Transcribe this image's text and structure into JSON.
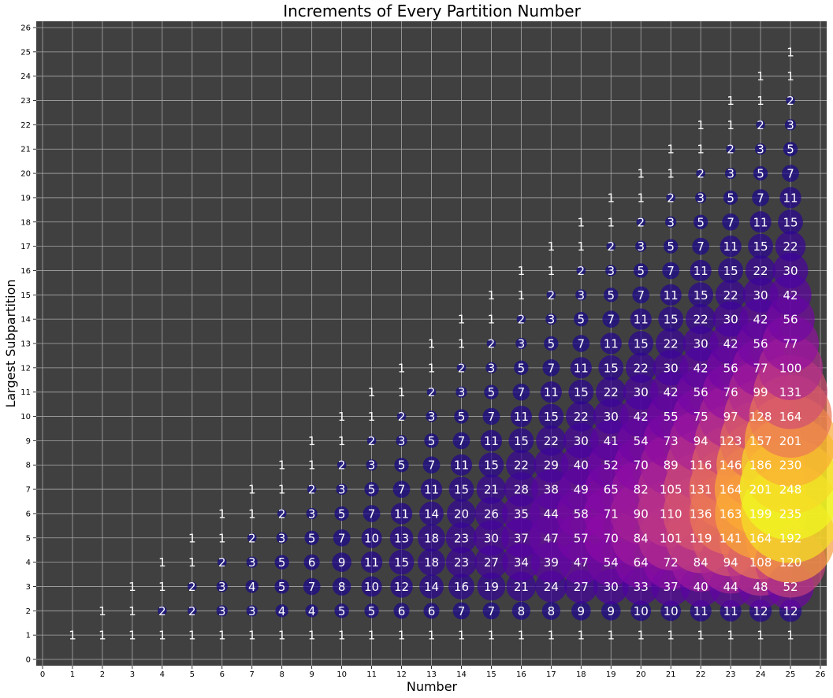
{
  "chart_data": {
    "type": "scatter",
    "title": "Increments of Every Partition Number",
    "xlabel": "Number",
    "ylabel": "Largest Subpartition",
    "xlim": [
      0,
      26
    ],
    "ylim": [
      0,
      26
    ],
    "xticks": [
      0,
      1,
      2,
      3,
      4,
      5,
      6,
      7,
      8,
      9,
      10,
      11,
      12,
      13,
      14,
      15,
      16,
      17,
      18,
      19,
      20,
      21,
      22,
      23,
      24,
      25,
      26
    ],
    "yticks": [
      0,
      1,
      2,
      3,
      4,
      5,
      6,
      7,
      8,
      9,
      10,
      11,
      12,
      13,
      14,
      15,
      16,
      17,
      18,
      19,
      20,
      21,
      22,
      23,
      24,
      25,
      26
    ],
    "grid": true,
    "background_color": "#404040",
    "grid_color": "#a8a8a8",
    "colormap": "plasma",
    "bubble_size_encodes": "value",
    "points": [
      [
        1,
        1,
        1
      ],
      [
        2,
        1,
        1
      ],
      [
        2,
        2,
        1
      ],
      [
        3,
        1,
        1
      ],
      [
        3,
        2,
        1
      ],
      [
        3,
        3,
        1
      ],
      [
        4,
        1,
        1
      ],
      [
        4,
        2,
        2
      ],
      [
        4,
        3,
        1
      ],
      [
        4,
        4,
        1
      ],
      [
        5,
        1,
        1
      ],
      [
        5,
        2,
        2
      ],
      [
        5,
        3,
        2
      ],
      [
        5,
        4,
        1
      ],
      [
        5,
        5,
        1
      ],
      [
        6,
        1,
        1
      ],
      [
        6,
        2,
        3
      ],
      [
        6,
        3,
        3
      ],
      [
        6,
        4,
        2
      ],
      [
        6,
        5,
        1
      ],
      [
        6,
        6,
        1
      ],
      [
        7,
        1,
        1
      ],
      [
        7,
        2,
        3
      ],
      [
        7,
        3,
        4
      ],
      [
        7,
        4,
        3
      ],
      [
        7,
        5,
        2
      ],
      [
        7,
        6,
        1
      ],
      [
        7,
        7,
        1
      ],
      [
        8,
        1,
        1
      ],
      [
        8,
        2,
        4
      ],
      [
        8,
        3,
        5
      ],
      [
        8,
        4,
        5
      ],
      [
        8,
        5,
        3
      ],
      [
        8,
        6,
        2
      ],
      [
        8,
        7,
        1
      ],
      [
        8,
        8,
        1
      ],
      [
        9,
        1,
        1
      ],
      [
        9,
        2,
        4
      ],
      [
        9,
        3,
        7
      ],
      [
        9,
        4,
        6
      ],
      [
        9,
        5,
        5
      ],
      [
        9,
        6,
        3
      ],
      [
        9,
        7,
        2
      ],
      [
        9,
        8,
        1
      ],
      [
        9,
        9,
        1
      ],
      [
        10,
        1,
        1
      ],
      [
        10,
        2,
        5
      ],
      [
        10,
        3,
        8
      ],
      [
        10,
        4,
        9
      ],
      [
        10,
        5,
        7
      ],
      [
        10,
        6,
        5
      ],
      [
        10,
        7,
        3
      ],
      [
        10,
        8,
        2
      ],
      [
        10,
        9,
        1
      ],
      [
        10,
        10,
        1
      ],
      [
        11,
        1,
        1
      ],
      [
        11,
        2,
        5
      ],
      [
        11,
        3,
        10
      ],
      [
        11,
        4,
        11
      ],
      [
        11,
        5,
        10
      ],
      [
        11,
        6,
        7
      ],
      [
        11,
        7,
        5
      ],
      [
        11,
        8,
        3
      ],
      [
        11,
        9,
        2
      ],
      [
        11,
        10,
        1
      ],
      [
        11,
        11,
        1
      ],
      [
        12,
        1,
        1
      ],
      [
        12,
        2,
        6
      ],
      [
        12,
        3,
        12
      ],
      [
        12,
        4,
        15
      ],
      [
        12,
        5,
        13
      ],
      [
        12,
        6,
        11
      ],
      [
        12,
        7,
        7
      ],
      [
        12,
        8,
        5
      ],
      [
        12,
        9,
        3
      ],
      [
        12,
        10,
        2
      ],
      [
        12,
        11,
        1
      ],
      [
        12,
        12,
        1
      ],
      [
        13,
        1,
        1
      ],
      [
        13,
        2,
        6
      ],
      [
        13,
        3,
        14
      ],
      [
        13,
        4,
        18
      ],
      [
        13,
        5,
        18
      ],
      [
        13,
        6,
        14
      ],
      [
        13,
        7,
        11
      ],
      [
        13,
        8,
        7
      ],
      [
        13,
        9,
        5
      ],
      [
        13,
        10,
        3
      ],
      [
        13,
        11,
        2
      ],
      [
        13,
        12,
        1
      ],
      [
        13,
        13,
        1
      ],
      [
        14,
        1,
        1
      ],
      [
        14,
        2,
        7
      ],
      [
        14,
        3,
        16
      ],
      [
        14,
        4,
        23
      ],
      [
        14,
        5,
        23
      ],
      [
        14,
        6,
        20
      ],
      [
        14,
        7,
        15
      ],
      [
        14,
        8,
        11
      ],
      [
        14,
        9,
        7
      ],
      [
        14,
        10,
        5
      ],
      [
        14,
        11,
        3
      ],
      [
        14,
        12,
        2
      ],
      [
        14,
        13,
        1
      ],
      [
        14,
        14,
        1
      ],
      [
        15,
        1,
        1
      ],
      [
        15,
        2,
        7
      ],
      [
        15,
        3,
        19
      ],
      [
        15,
        4,
        27
      ],
      [
        15,
        5,
        30
      ],
      [
        15,
        6,
        26
      ],
      [
        15,
        7,
        21
      ],
      [
        15,
        8,
        15
      ],
      [
        15,
        9,
        11
      ],
      [
        15,
        10,
        7
      ],
      [
        15,
        11,
        5
      ],
      [
        15,
        12,
        3
      ],
      [
        15,
        13,
        2
      ],
      [
        15,
        14,
        1
      ],
      [
        15,
        15,
        1
      ],
      [
        16,
        1,
        1
      ],
      [
        16,
        2,
        8
      ],
      [
        16,
        3,
        21
      ],
      [
        16,
        4,
        34
      ],
      [
        16,
        5,
        37
      ],
      [
        16,
        6,
        35
      ],
      [
        16,
        7,
        28
      ],
      [
        16,
        8,
        22
      ],
      [
        16,
        9,
        15
      ],
      [
        16,
        10,
        11
      ],
      [
        16,
        11,
        7
      ],
      [
        16,
        12,
        5
      ],
      [
        16,
        13,
        3
      ],
      [
        16,
        14,
        2
      ],
      [
        16,
        15,
        1
      ],
      [
        16,
        16,
        1
      ],
      [
        17,
        1,
        1
      ],
      [
        17,
        2,
        8
      ],
      [
        17,
        3,
        24
      ],
      [
        17,
        4,
        39
      ],
      [
        17,
        5,
        47
      ],
      [
        17,
        6,
        44
      ],
      [
        17,
        7,
        38
      ],
      [
        17,
        8,
        29
      ],
      [
        17,
        9,
        22
      ],
      [
        17,
        10,
        15
      ],
      [
        17,
        11,
        11
      ],
      [
        17,
        12,
        7
      ],
      [
        17,
        13,
        5
      ],
      [
        17,
        14,
        3
      ],
      [
        17,
        15,
        2
      ],
      [
        17,
        16,
        1
      ],
      [
        17,
        17,
        1
      ],
      [
        18,
        1,
        1
      ],
      [
        18,
        2,
        9
      ],
      [
        18,
        3,
        27
      ],
      [
        18,
        4,
        47
      ],
      [
        18,
        5,
        57
      ],
      [
        18,
        6,
        58
      ],
      [
        18,
        7,
        49
      ],
      [
        18,
        8,
        40
      ],
      [
        18,
        9,
        30
      ],
      [
        18,
        10,
        22
      ],
      [
        18,
        11,
        15
      ],
      [
        18,
        12,
        11
      ],
      [
        18,
        13,
        7
      ],
      [
        18,
        14,
        5
      ],
      [
        18,
        15,
        3
      ],
      [
        18,
        16,
        2
      ],
      [
        18,
        17,
        1
      ],
      [
        18,
        18,
        1
      ],
      [
        19,
        1,
        1
      ],
      [
        19,
        2,
        9
      ],
      [
        19,
        3,
        30
      ],
      [
        19,
        4,
        54
      ],
      [
        19,
        5,
        70
      ],
      [
        19,
        6,
        71
      ],
      [
        19,
        7,
        65
      ],
      [
        19,
        8,
        52
      ],
      [
        19,
        9,
        41
      ],
      [
        19,
        10,
        30
      ],
      [
        19,
        11,
        22
      ],
      [
        19,
        12,
        15
      ],
      [
        19,
        13,
        11
      ],
      [
        19,
        14,
        7
      ],
      [
        19,
        15,
        5
      ],
      [
        19,
        16,
        3
      ],
      [
        19,
        17,
        2
      ],
      [
        19,
        18,
        1
      ],
      [
        19,
        19,
        1
      ],
      [
        20,
        1,
        1
      ],
      [
        20,
        2,
        10
      ],
      [
        20,
        3,
        33
      ],
      [
        20,
        4,
        64
      ],
      [
        20,
        5,
        84
      ],
      [
        20,
        6,
        90
      ],
      [
        20,
        7,
        82
      ],
      [
        20,
        8,
        70
      ],
      [
        20,
        9,
        54
      ],
      [
        20,
        10,
        42
      ],
      [
        20,
        11,
        30
      ],
      [
        20,
        12,
        22
      ],
      [
        20,
        13,
        15
      ],
      [
        20,
        14,
        11
      ],
      [
        20,
        15,
        7
      ],
      [
        20,
        16,
        5
      ],
      [
        20,
        17,
        3
      ],
      [
        20,
        18,
        2
      ],
      [
        20,
        19,
        1
      ],
      [
        20,
        20,
        1
      ],
      [
        21,
        1,
        1
      ],
      [
        21,
        2,
        10
      ],
      [
        21,
        3,
        37
      ],
      [
        21,
        4,
        72
      ],
      [
        21,
        5,
        101
      ],
      [
        21,
        6,
        110
      ],
      [
        21,
        7,
        105
      ],
      [
        21,
        8,
        89
      ],
      [
        21,
        9,
        73
      ],
      [
        21,
        10,
        55
      ],
      [
        21,
        11,
        42
      ],
      [
        21,
        12,
        30
      ],
      [
        21,
        13,
        22
      ],
      [
        21,
        14,
        15
      ],
      [
        21,
        15,
        11
      ],
      [
        21,
        16,
        7
      ],
      [
        21,
        17,
        5
      ],
      [
        21,
        18,
        3
      ],
      [
        21,
        19,
        2
      ],
      [
        21,
        20,
        1
      ],
      [
        21,
        21,
        1
      ],
      [
        22,
        1,
        1
      ],
      [
        22,
        2,
        11
      ],
      [
        22,
        3,
        40
      ],
      [
        22,
        4,
        84
      ],
      [
        22,
        5,
        119
      ],
      [
        22,
        6,
        136
      ],
      [
        22,
        7,
        131
      ],
      [
        22,
        8,
        116
      ],
      [
        22,
        9,
        94
      ],
      [
        22,
        10,
        75
      ],
      [
        22,
        11,
        56
      ],
      [
        22,
        12,
        42
      ],
      [
        22,
        13,
        30
      ],
      [
        22,
        14,
        22
      ],
      [
        22,
        15,
        15
      ],
      [
        22,
        16,
        11
      ],
      [
        22,
        17,
        7
      ],
      [
        22,
        18,
        5
      ],
      [
        22,
        19,
        3
      ],
      [
        22,
        20,
        2
      ],
      [
        22,
        21,
        1
      ],
      [
        22,
        22,
        1
      ],
      [
        23,
        1,
        1
      ],
      [
        23,
        2,
        11
      ],
      [
        23,
        3,
        44
      ],
      [
        23,
        4,
        94
      ],
      [
        23,
        5,
        141
      ],
      [
        23,
        6,
        163
      ],
      [
        23,
        7,
        164
      ],
      [
        23,
        8,
        146
      ],
      [
        23,
        9,
        123
      ],
      [
        23,
        10,
        97
      ],
      [
        23,
        11,
        76
      ],
      [
        23,
        12,
        56
      ],
      [
        23,
        13,
        42
      ],
      [
        23,
        14,
        30
      ],
      [
        23,
        15,
        22
      ],
      [
        23,
        16,
        15
      ],
      [
        23,
        17,
        11
      ],
      [
        23,
        18,
        7
      ],
      [
        23,
        19,
        5
      ],
      [
        23,
        20,
        3
      ],
      [
        23,
        21,
        2
      ],
      [
        23,
        22,
        1
      ],
      [
        23,
        23,
        1
      ],
      [
        24,
        1,
        1
      ],
      [
        24,
        2,
        12
      ],
      [
        24,
        3,
        48
      ],
      [
        24,
        4,
        108
      ],
      [
        24,
        5,
        164
      ],
      [
        24,
        6,
        199
      ],
      [
        24,
        7,
        201
      ],
      [
        24,
        8,
        186
      ],
      [
        24,
        9,
        157
      ],
      [
        24,
        10,
        128
      ],
      [
        24,
        11,
        99
      ],
      [
        24,
        12,
        77
      ],
      [
        24,
        13,
        56
      ],
      [
        24,
        14,
        42
      ],
      [
        24,
        15,
        30
      ],
      [
        24,
        16,
        22
      ],
      [
        24,
        17,
        15
      ],
      [
        24,
        18,
        11
      ],
      [
        24,
        19,
        7
      ],
      [
        24,
        20,
        5
      ],
      [
        24,
        21,
        3
      ],
      [
        24,
        22,
        2
      ],
      [
        24,
        23,
        1
      ],
      [
        24,
        24,
        1
      ],
      [
        25,
        1,
        1
      ],
      [
        25,
        2,
        12
      ],
      [
        25,
        3,
        52
      ],
      [
        25,
        4,
        120
      ],
      [
        25,
        5,
        192
      ],
      [
        25,
        6,
        235
      ],
      [
        25,
        7,
        248
      ],
      [
        25,
        8,
        230
      ],
      [
        25,
        9,
        201
      ],
      [
        25,
        10,
        164
      ],
      [
        25,
        11,
        131
      ],
      [
        25,
        12,
        100
      ],
      [
        25,
        13,
        77
      ],
      [
        25,
        14,
        56
      ],
      [
        25,
        15,
        42
      ],
      [
        25,
        16,
        30
      ],
      [
        25,
        17,
        22
      ],
      [
        25,
        18,
        15
      ],
      [
        25,
        19,
        11
      ],
      [
        25,
        20,
        7
      ],
      [
        25,
        21,
        5
      ],
      [
        25,
        22,
        3
      ],
      [
        25,
        23,
        2
      ],
      [
        25,
        24,
        1
      ],
      [
        25,
        25,
        1
      ]
    ]
  }
}
